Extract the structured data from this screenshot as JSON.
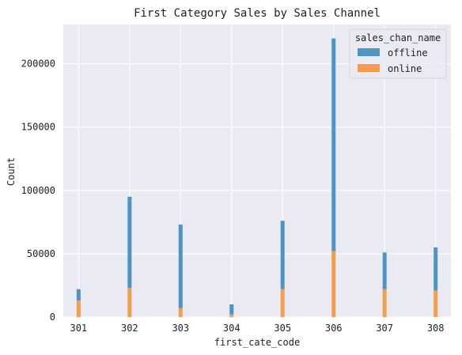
{
  "chart_data": {
    "type": "bar",
    "stacked": true,
    "title": "First Category Sales by Sales Channel",
    "xlabel": "first_cate_code",
    "ylabel": "Count",
    "categories": [
      "301",
      "302",
      "303",
      "304",
      "305",
      "306",
      "307",
      "308"
    ],
    "x": [
      301,
      302,
      303,
      304,
      305,
      306,
      307,
      308
    ],
    "xlim": [
      300.7,
      308.3
    ],
    "ylim": [
      0,
      231000
    ],
    "yticks": [
      0,
      50000,
      100000,
      150000,
      200000
    ],
    "ytick_labels": [
      "0",
      "50000",
      "100000",
      "150000",
      "200000"
    ],
    "series": [
      {
        "name": "offline",
        "color": "#4f95c4",
        "values": [
          9000,
          72000,
          66000,
          8000,
          54000,
          168000,
          29000,
          34000
        ]
      },
      {
        "name": "online",
        "color": "#f59d4d",
        "values": [
          13000,
          23000,
          7000,
          2000,
          22000,
          52000,
          22000,
          21000
        ]
      }
    ],
    "stack_order": [
      "online",
      "offline"
    ],
    "legend": {
      "title": "sales_chan_name",
      "placement": "top-right"
    },
    "grid": true,
    "background": "#eaeaf2",
    "gridline_color": "#ffffff"
  }
}
